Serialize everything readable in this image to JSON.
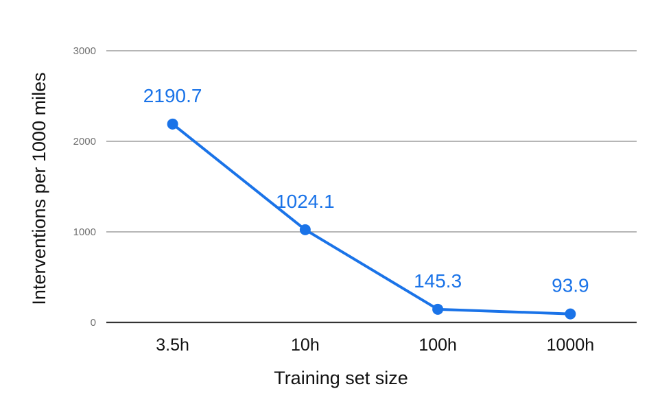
{
  "chart_data": {
    "type": "line",
    "title": "",
    "xlabel": "Training set size",
    "ylabel": "Interventions per 1000 miles",
    "categories": [
      "3.5h",
      "10h",
      "100h",
      "1000h"
    ],
    "series": [
      {
        "values": [
          2190.7,
          1024.1,
          145.3,
          93.9
        ]
      }
    ],
    "data_labels": [
      "2190.7",
      "1024.1",
      "145.3",
      "93.9"
    ],
    "yticks": [
      0,
      1000,
      2000,
      3000
    ],
    "ytick_labels": [
      "0",
      "1000",
      "2000",
      "3000"
    ],
    "ylim": [
      0,
      3000
    ],
    "grid": true,
    "legend": "none"
  },
  "colors": {
    "series": "#1a73e8",
    "label": "#1a73e8"
  }
}
